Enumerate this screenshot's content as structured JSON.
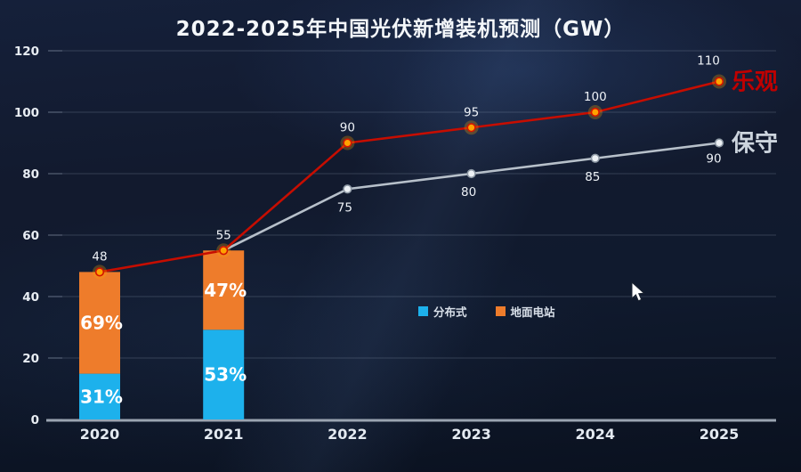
{
  "title": "2022-2025年中国光伏新增装机预测（GW）",
  "colors": {
    "distributed": "#1db1ec",
    "ground": "#ee7c2b",
    "optimistic_line": "#c60d00",
    "optimistic_marker": "#ffa200",
    "optimistic_marker_stroke": "#d41500",
    "optimistic_text": "#bf0000",
    "conservative_line": "#b7c0ca",
    "conservative_marker": "#edf1f5",
    "conservative_marker_stroke": "#8f9aa6",
    "conservative_text": "#ccd4dd",
    "grid": "rgba(154,170,192,0.25)",
    "tick_mark": "rgba(170,185,205,0.45)",
    "axis_line": "#9aa4b1",
    "tick_text": "#e8edf3",
    "axis_category_text": "#e4eaf1",
    "data_label": "#eef2f7",
    "percent_label": "#ffffff",
    "title_text": "#f4f7fa",
    "legend_text": "#d9e0e9"
  },
  "legend": {
    "items": [
      {
        "label": "分布式",
        "color_key": "distributed"
      },
      {
        "label": "地面电站",
        "color_key": "ground"
      }
    ]
  },
  "chart_data": {
    "type": "combo: stacked-bar + line",
    "title": "2022-2025年中国光伏新增装机预测（GW）",
    "categories": [
      "2020",
      "2021",
      "2022",
      "2023",
      "2024",
      "2025"
    ],
    "y_axis": {
      "min": 0,
      "max": 120,
      "step": 20,
      "ticks": [
        0,
        20,
        40,
        60,
        80,
        100,
        120
      ]
    },
    "grid": "horizontal only",
    "legend_position": "center of plot, mid-height",
    "bars": {
      "years": [
        "2020",
        "2021"
      ],
      "totals": [
        48,
        55
      ],
      "segments": [
        {
          "name": "分布式",
          "color_key": "distributed",
          "values": [
            14.9,
            29.2
          ],
          "labels": [
            "31%",
            "53%"
          ]
        },
        {
          "name": "地面电站",
          "color_key": "ground",
          "values": [
            33.1,
            25.8
          ],
          "labels": [
            "69%",
            "47%"
          ]
        }
      ]
    },
    "lines": [
      {
        "name": "保守",
        "color_key": "conservative_line",
        "marker_key": "conservative_marker",
        "marker_stroke_key": "conservative_marker_stroke",
        "end_label_color_key": "conservative_text",
        "start_index": 1,
        "values": [
          55,
          75,
          80,
          85,
          90
        ],
        "labels": [
          "",
          "75",
          "80",
          "85",
          "90"
        ],
        "label_side": "below",
        "glow": false
      },
      {
        "name": "乐观",
        "color_key": "optimistic_line",
        "marker_key": "optimistic_marker",
        "marker_stroke_key": "optimistic_marker_stroke",
        "end_label_color_key": "optimistic_text",
        "start_index": 0,
        "values": [
          48,
          55,
          90,
          95,
          100,
          110
        ],
        "labels": [
          "48",
          "55",
          "90",
          "95",
          "100",
          "110"
        ],
        "label_side": "above",
        "glow": true
      }
    ]
  }
}
